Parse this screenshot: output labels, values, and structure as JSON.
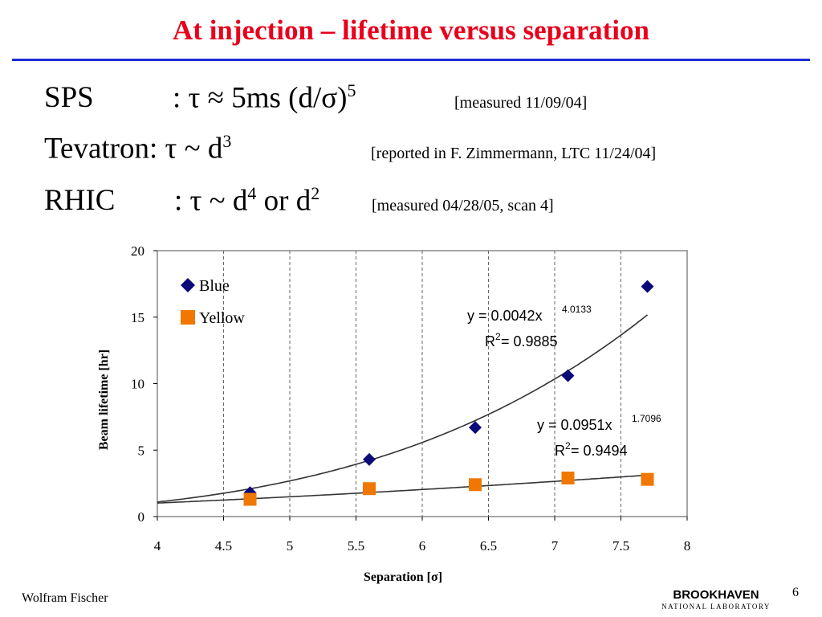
{
  "slide": {
    "title": "At injection – lifetime versus separation",
    "lines": [
      {
        "label": "SPS",
        "formula": ": τ ≈ 5ms (d/σ)",
        "sup": "5",
        "note": "[measured 11/09/04]"
      },
      {
        "label": "Tevatron:",
        "formula": "τ ~ d",
        "sup": "3",
        "note": "[reported in F. Zimmermann, LTC 11/24/04]"
      },
      {
        "label": "RHIC",
        "formula": ": τ ~ d",
        "sup": "4",
        "mid": "or d",
        "sup2": "2",
        "note": "[measured 04/28/05, scan 4]"
      }
    ],
    "author": "Wolfram Fischer",
    "page": "6",
    "logo": {
      "main": "BROOKHAVEN",
      "sub": "NATIONAL LABORATORY"
    }
  },
  "chart_data": {
    "type": "scatter",
    "xlabel": "Separation [σ]",
    "ylabel": "Beam lifetime [hr]",
    "xlim": [
      4,
      8
    ],
    "ylim": [
      0,
      20
    ],
    "xticks": [
      "4",
      "4.5",
      "5",
      "5.5",
      "6",
      "6.5",
      "7",
      "7.5",
      "8"
    ],
    "yticks": [
      "0",
      "5",
      "10",
      "15",
      "20"
    ],
    "grid": "vertical dashed",
    "legend_position": "top-left",
    "series": [
      {
        "name": "Blue",
        "color": "#0a0a78",
        "marker": "diamond",
        "x": [
          4.7,
          5.6,
          6.4,
          7.1,
          7.7
        ],
        "y": [
          1.8,
          4.3,
          6.7,
          10.6,
          17.3
        ],
        "fit": {
          "a": 0.0042,
          "b": 4.0133,
          "equation": "y = 0.0042x",
          "exponent": "4.0133",
          "r2_label": "R",
          "r2_value": " = 0.9885"
        }
      },
      {
        "name": "Yellow",
        "color": "#f07800",
        "marker": "square",
        "x": [
          4.7,
          5.6,
          6.4,
          7.1,
          7.7
        ],
        "y": [
          1.3,
          2.1,
          2.4,
          2.9,
          2.8
        ],
        "fit": {
          "a": 0.0951,
          "b": 1.7096,
          "equation": "y = 0.0951x",
          "exponent": "1.7096",
          "r2_label": "R",
          "r2_value": " = 0.9494"
        }
      }
    ]
  }
}
